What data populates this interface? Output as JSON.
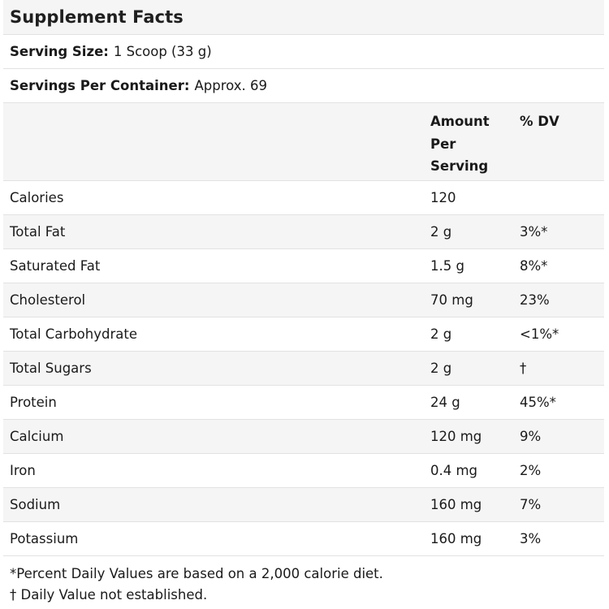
{
  "title": "Supplement Facts",
  "serving_size": {
    "label": "Serving Size:",
    "value": "1 Scoop (33 g)"
  },
  "servings_per_container": {
    "label": "Servings Per Container:",
    "value": "Approx. 69"
  },
  "columns": {
    "amount": "Amount Per Serving",
    "dv": "% DV"
  },
  "nutrients": [
    {
      "name": "Calories",
      "amount": "120",
      "dv": ""
    },
    {
      "name": "Total Fat",
      "amount": "2 g",
      "dv": "3%*"
    },
    {
      "name": "Saturated Fat",
      "amount": "1.5 g",
      "dv": "8%*"
    },
    {
      "name": "Cholesterol",
      "amount": "70 mg",
      "dv": "23%"
    },
    {
      "name": "Total Carbohydrate",
      "amount": "2 g",
      "dv": "<1%*"
    },
    {
      "name": "Total Sugars",
      "amount": "2 g",
      "dv": "†"
    },
    {
      "name": "Protein",
      "amount": "24 g",
      "dv": "45%*"
    },
    {
      "name": "Calcium",
      "amount": "120 mg",
      "dv": "9%"
    },
    {
      "name": "Iron",
      "amount": "0.4 mg",
      "dv": "2%"
    },
    {
      "name": "Sodium",
      "amount": "160 mg",
      "dv": "7%"
    },
    {
      "name": "Potassium",
      "amount": "160 mg",
      "dv": "3%"
    }
  ],
  "footnotes": [
    "*Percent Daily Values are based on a 2,000 calorie diet.",
    "† Daily Value not established."
  ],
  "colors": {
    "stripe": "#f5f5f5",
    "border": "#e2e2e2",
    "text": "#1a1a1a"
  }
}
